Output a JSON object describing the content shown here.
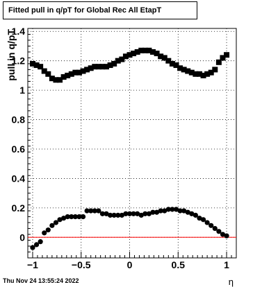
{
  "chart_data": {
    "type": "scatter",
    "title": "Fitted pull in q/pT for Global Rec All EtapT",
    "xlabel": "η",
    "ylabel": "pull in q/pT",
    "xlim": [
      -1.05,
      1.1
    ],
    "ylim": [
      -0.14,
      1.42
    ],
    "xticks": [
      "−1",
      "−0.5",
      "0",
      "0.5",
      "1"
    ],
    "xtick_values": [
      -1,
      -0.5,
      0,
      0.5,
      1
    ],
    "yticks": [
      "0",
      "0.2",
      "0.4",
      "0.6",
      "0.8",
      "1",
      "1.2",
      "1.4"
    ],
    "ytick_values": [
      0,
      0.2,
      0.4,
      0.6,
      0.8,
      1,
      1.2,
      1.4
    ],
    "grid": true,
    "reference_line": {
      "y": 0,
      "color": "#ff0000"
    },
    "series": [
      {
        "marker": "square",
        "color": "#000000",
        "x": [
          -1.0,
          -0.96,
          -0.92,
          -0.88,
          -0.84,
          -0.8,
          -0.76,
          -0.72,
          -0.68,
          -0.64,
          -0.6,
          -0.56,
          -0.52,
          -0.48,
          -0.44,
          -0.4,
          -0.36,
          -0.32,
          -0.28,
          -0.24,
          -0.2,
          -0.16,
          -0.12,
          -0.08,
          -0.04,
          0.0,
          0.04,
          0.08,
          0.12,
          0.16,
          0.2,
          0.24,
          0.28,
          0.32,
          0.36,
          0.4,
          0.44,
          0.48,
          0.52,
          0.56,
          0.6,
          0.64,
          0.68,
          0.72,
          0.76,
          0.8,
          0.84,
          0.88,
          0.92,
          0.96,
          1.0
        ],
        "y": [
          1.18,
          1.17,
          1.16,
          1.13,
          1.11,
          1.08,
          1.07,
          1.07,
          1.09,
          1.1,
          1.11,
          1.12,
          1.12,
          1.13,
          1.14,
          1.15,
          1.16,
          1.16,
          1.16,
          1.16,
          1.17,
          1.18,
          1.2,
          1.21,
          1.23,
          1.24,
          1.25,
          1.26,
          1.27,
          1.27,
          1.27,
          1.26,
          1.25,
          1.23,
          1.22,
          1.2,
          1.18,
          1.17,
          1.15,
          1.14,
          1.13,
          1.12,
          1.11,
          1.11,
          1.1,
          1.11,
          1.12,
          1.14,
          1.19,
          1.22,
          1.24
        ]
      },
      {
        "marker": "circle",
        "color": "#000000",
        "x": [
          -1.0,
          -0.96,
          -0.92,
          -0.88,
          -0.84,
          -0.8,
          -0.76,
          -0.72,
          -0.68,
          -0.64,
          -0.6,
          -0.56,
          -0.52,
          -0.48,
          -0.44,
          -0.4,
          -0.36,
          -0.32,
          -0.28,
          -0.24,
          -0.2,
          -0.16,
          -0.12,
          -0.08,
          -0.04,
          0.0,
          0.04,
          0.08,
          0.12,
          0.16,
          0.2,
          0.24,
          0.28,
          0.32,
          0.36,
          0.4,
          0.44,
          0.48,
          0.52,
          0.56,
          0.6,
          0.64,
          0.68,
          0.72,
          0.76,
          0.8,
          0.84,
          0.88,
          0.92,
          0.96,
          1.0
        ],
        "y": [
          -0.07,
          -0.05,
          -0.03,
          0.03,
          0.05,
          0.08,
          0.1,
          0.12,
          0.13,
          0.14,
          0.14,
          0.14,
          0.14,
          0.14,
          0.18,
          0.18,
          0.18,
          0.18,
          0.16,
          0.16,
          0.15,
          0.15,
          0.15,
          0.15,
          0.16,
          0.16,
          0.16,
          0.16,
          0.15,
          0.16,
          0.16,
          0.17,
          0.17,
          0.18,
          0.18,
          0.19,
          0.19,
          0.19,
          0.18,
          0.18,
          0.17,
          0.16,
          0.15,
          0.13,
          0.12,
          0.1,
          0.08,
          0.06,
          0.04,
          0.02,
          0.01
        ]
      }
    ]
  },
  "footer": {
    "date": "Thu Nov 24 13:55:24 2022"
  }
}
